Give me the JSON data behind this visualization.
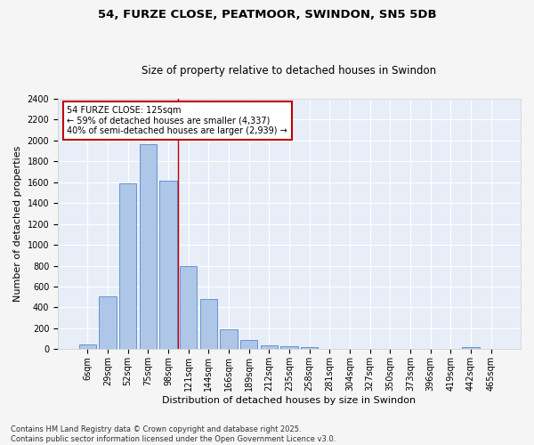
{
  "title1": "54, FURZE CLOSE, PEATMOOR, SWINDON, SN5 5DB",
  "title2": "Size of property relative to detached houses in Swindon",
  "xlabel": "Distribution of detached houses by size in Swindon",
  "ylabel": "Number of detached properties",
  "categories": [
    "6sqm",
    "29sqm",
    "52sqm",
    "75sqm",
    "98sqm",
    "121sqm",
    "144sqm",
    "166sqm",
    "189sqm",
    "212sqm",
    "235sqm",
    "258sqm",
    "281sqm",
    "304sqm",
    "327sqm",
    "350sqm",
    "373sqm",
    "396sqm",
    "419sqm",
    "442sqm",
    "465sqm"
  ],
  "values": [
    50,
    510,
    1590,
    1960,
    1610,
    800,
    480,
    195,
    90,
    40,
    25,
    20,
    0,
    0,
    0,
    0,
    0,
    0,
    0,
    20,
    0
  ],
  "bar_color": "#aec6e8",
  "bar_edge_color": "#5588cc",
  "background_color": "#e8eef8",
  "fig_background": "#f5f5f5",
  "grid_color": "#ffffff",
  "vline_color": "#c00000",
  "annotation_box_color": "#c00000",
  "ylim": [
    0,
    2400
  ],
  "yticks": [
    0,
    200,
    400,
    600,
    800,
    1000,
    1200,
    1400,
    1600,
    1800,
    2000,
    2200,
    2400
  ],
  "annotation_line1": "54 FURZE CLOSE: 125sqm",
  "annotation_line2": "← 59% of detached houses are smaller (4,337)",
  "annotation_line3": "40% of semi-detached houses are larger (2,939) →",
  "footnote": "Contains HM Land Registry data © Crown copyright and database right 2025.\nContains public sector information licensed under the Open Government Licence v3.0.",
  "title_fontsize": 9.5,
  "subtitle_fontsize": 8.5,
  "tick_fontsize": 7,
  "label_fontsize": 8,
  "annot_fontsize": 7,
  "footnote_fontsize": 6
}
